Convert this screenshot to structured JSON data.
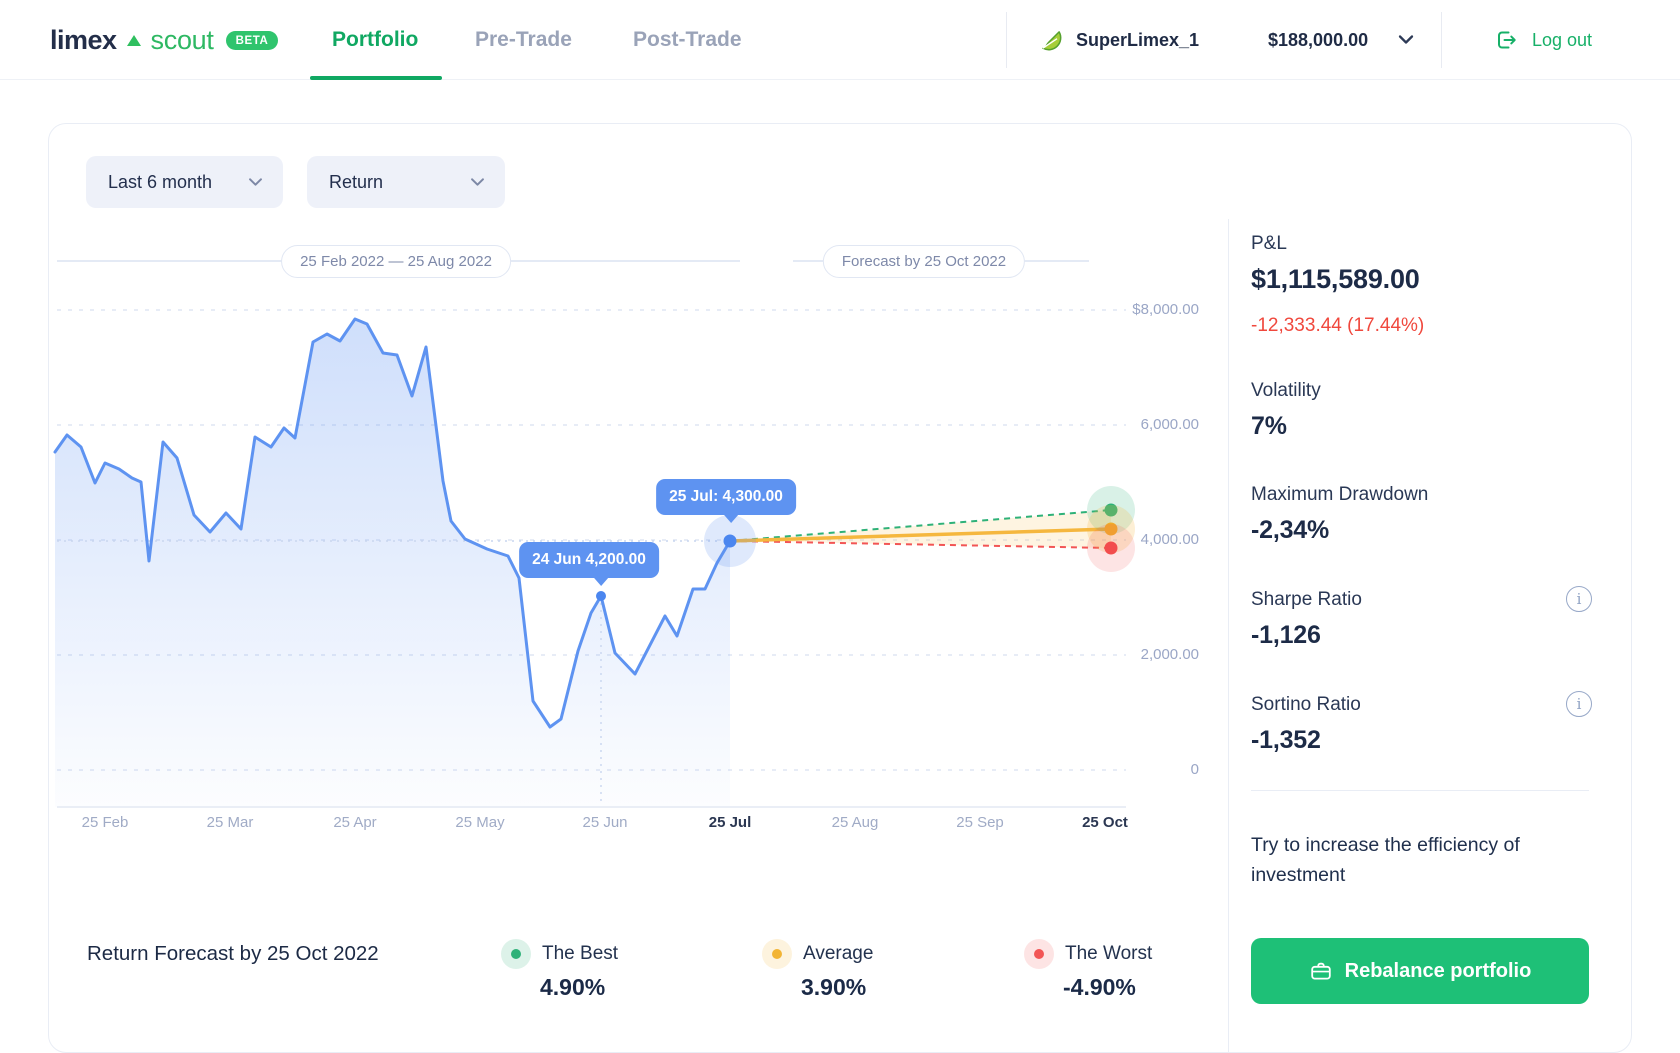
{
  "colors": {
    "brand_green": "#17b068",
    "line_blue": "#5e93f1",
    "tooltip_blue": "#5e93f1",
    "forecast_best_green": "#2eb178",
    "forecast_avg_yellow": "#f5b73e",
    "forecast_worst_red": "#f25555",
    "negative_red": "#f0483d",
    "grid": "#dfe6f4"
  },
  "header": {
    "logo": {
      "name": "limex",
      "product": "scout",
      "badge": "BETA"
    },
    "tabs": [
      {
        "label": "Portfolio",
        "active": true
      },
      {
        "label": "Pre-Trade",
        "active": false
      },
      {
        "label": "Post-Trade",
        "active": false
      }
    ],
    "account": {
      "name": "SuperLimex_1",
      "balance": "$188,000.00"
    },
    "logout_label": "Log out"
  },
  "filters": {
    "period": "Last 6 month",
    "metric": "Return"
  },
  "chart": {
    "range_label": "25 Feb 2022 —  25 Aug 2022",
    "forecast_label": "Forecast by 25 Oct 2022",
    "y_ticks": [
      "$8,000.00",
      "6,000.00",
      "4,000.00",
      "2,000.00",
      "0"
    ],
    "x_ticks": [
      {
        "label": "25 Feb",
        "em": false
      },
      {
        "label": "25 Mar",
        "em": false
      },
      {
        "label": "25 Apr",
        "em": false
      },
      {
        "label": "25 May",
        "em": false
      },
      {
        "label": "25 Jun",
        "em": false
      },
      {
        "label": "25 Jul",
        "em": true
      },
      {
        "label": "25 Aug",
        "em": false
      },
      {
        "label": "25 Sep",
        "em": false
      },
      {
        "label": "25 Oct",
        "em": true
      }
    ],
    "tooltips": {
      "jun": "24 Jun 4,200.00",
      "jul": "25 Jul: 4,300.00"
    }
  },
  "chart_data": {
    "type": "line",
    "title": "Portfolio value, last 6 months with 3-month forecast",
    "x_range": [
      "25 Feb 2022",
      "25 Oct 2022"
    ],
    "historical_period": "25 Feb 2022 — 25 Aug 2022",
    "forecast_period_end": "25 Oct 2022",
    "ylim": [
      0,
      8000
    ],
    "y_ticks": [
      0,
      2000,
      4000,
      6000,
      8000
    ],
    "x_tick_labels": [
      "25 Feb",
      "25 Mar",
      "25 Apr",
      "25 May",
      "25 Jun",
      "25 Jul",
      "25 Aug",
      "25 Sep",
      "25 Oct"
    ],
    "labeled_points": [
      {
        "date": "24 Jun",
        "value": 4200.0
      },
      {
        "date": "25 Jul",
        "value": 4300.0
      }
    ],
    "series_axis_estimate": [
      5350,
      5640,
      5440,
      4820,
      5160,
      5060,
      4910,
      4840,
      3490,
      5520,
      5250,
      4270,
      3980,
      4310,
      4030,
      5610,
      5440,
      5760,
      5590,
      7230,
      7370,
      7250,
      7620,
      7540,
      7040,
      7010,
      6310,
      7140,
      4850,
      4170,
      3860,
      3690,
      3570,
      3200,
      1090,
      650,
      790,
      1950,
      2600,
      2890,
      1910,
      1560,
      2550,
      2210,
      3010,
      3010,
      3450,
      3830
    ],
    "forecast": {
      "base": {
        "date": "25 Jul",
        "value": 4300.0
      },
      "best_pct": 4.9,
      "average_pct": 3.9,
      "worst_pct": -4.9
    },
    "legend_position": "bottom",
    "grid": true
  },
  "sidebar": {
    "pnl": {
      "label": "P&L",
      "value": "$1,115,589.00",
      "change": "-12,333.44 (17.44%)"
    },
    "volatility": {
      "label": "Volatility",
      "value": "7%"
    },
    "max_drawdown": {
      "label": "Maximum Drawdown",
      "value": "-2,34%"
    },
    "sharpe": {
      "label": "Sharpe Ratio",
      "value": "-1,126"
    },
    "sortino": {
      "label": "Sortino Ratio",
      "value": "-1,352"
    },
    "info_glyph": "i",
    "hint": "Try to increase the efficiency of investment",
    "rebalance_label": "Rebalance portfolio"
  },
  "forecast_legend": {
    "title": "Return Forecast by 25 Oct 2022",
    "items": [
      {
        "label": "The Best",
        "value": "4.90%",
        "color": "#2eb178"
      },
      {
        "label": "Average",
        "value": "3.90%",
        "color": "#f2b434"
      },
      {
        "label": "The Worst",
        "value": "-4.90%",
        "color": "#f25555"
      }
    ]
  }
}
